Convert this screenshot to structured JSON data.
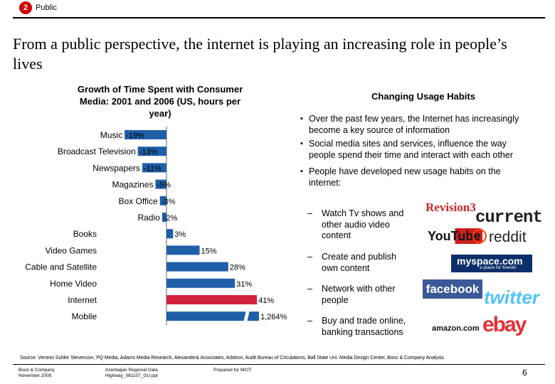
{
  "header": {
    "badge_number": "2",
    "label": "Public"
  },
  "title": "From a public perspective, the internet is playing an increasing role in people’s lives",
  "chart_data": {
    "type": "bar",
    "orientation": "horizontal",
    "title": "Growth of Time Spent with Consumer Media: 2001 and 2006 (US, hours per year)",
    "categories": [
      "Music",
      "Broadcast Television",
      "Newspapers",
      "Magazines",
      "Box Office",
      "Radio",
      "Books",
      "Video Games",
      "Cable and Satellite",
      "Home Video",
      "Internet",
      "Mobile"
    ],
    "values": [
      -19,
      -13,
      -11,
      -5,
      -3,
      -2,
      3,
      15,
      28,
      31,
      41,
      1264
    ],
    "value_labels": [
      "-19%",
      "-13%",
      "-11%",
      "-5%",
      "-3%",
      "-2%",
      "3%",
      "15%",
      "28%",
      "31%",
      "41%",
      "1,264%"
    ],
    "axis_break_on": "Mobile",
    "highlight_category": "Internet",
    "colors": {
      "bar": "#1f5fa8",
      "highlight": "#d2233c"
    }
  },
  "usage": {
    "title": "Changing Usage Habits",
    "bullets": [
      "Over the past few years, the Internet has increasingly become a key source of information",
      "Social media sites and services, influence the way people spend their time and interact with each other",
      "People have developed new usage habits on the internet:"
    ],
    "subitems": [
      "Watch Tv shows and other audio video content",
      "Create and publish own content",
      "Network with other people",
      "Buy and trade online, banking transactions"
    ],
    "logos": [
      "Revision3",
      "current",
      "YouTube",
      "reddit",
      "myspace.com",
      "a place for friends",
      "facebook",
      "twitter",
      "amazon.com",
      "ebay"
    ]
  },
  "footer": {
    "source": "Source:  Veronis Suhler Stevenson, PQ Media, Adams Media Research, Alexander& Associates, Arbitron, Audit Bureau of Circulations, Ball State Uni. Media Design Center, Booz & Company Analysis",
    "company": [
      "Booz & Company",
      "November 2008"
    ],
    "file": [
      "Azerbaijan Regional Data",
      "Highway_081107_GU.ppt"
    ],
    "prepared": "Prepared for MCIT",
    "page": "6"
  }
}
